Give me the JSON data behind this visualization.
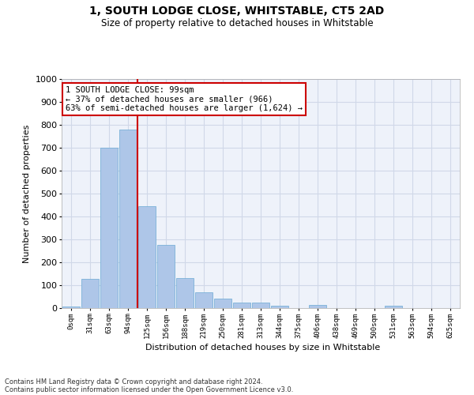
{
  "title_line1": "1, SOUTH LODGE CLOSE, WHITSTABLE, CT5 2AD",
  "title_line2": "Size of property relative to detached houses in Whitstable",
  "xlabel": "Distribution of detached houses by size in Whitstable",
  "ylabel": "Number of detached properties",
  "bar_color": "#aec6e8",
  "bar_edge_color": "#6aaad4",
  "categories": [
    "0sqm",
    "31sqm",
    "63sqm",
    "94sqm",
    "125sqm",
    "156sqm",
    "188sqm",
    "219sqm",
    "250sqm",
    "281sqm",
    "313sqm",
    "344sqm",
    "375sqm",
    "406sqm",
    "438sqm",
    "469sqm",
    "500sqm",
    "531sqm",
    "563sqm",
    "594sqm",
    "625sqm"
  ],
  "values": [
    8,
    127,
    700,
    780,
    445,
    275,
    132,
    70,
    40,
    23,
    23,
    12,
    0,
    13,
    0,
    0,
    0,
    10,
    0,
    0,
    0
  ],
  "ylim": [
    0,
    1000
  ],
  "yticks": [
    0,
    100,
    200,
    300,
    400,
    500,
    600,
    700,
    800,
    900,
    1000
  ],
  "vline_x_idx": 3,
  "annotation_text": "1 SOUTH LODGE CLOSE: 99sqm\n← 37% of detached houses are smaller (966)\n63% of semi-detached houses are larger (1,624) →",
  "annotation_box_color": "#ffffff",
  "annotation_box_edge_color": "#cc0000",
  "grid_color": "#d0d8e8",
  "vline_color": "#cc0000",
  "footer_line1": "Contains HM Land Registry data © Crown copyright and database right 2024.",
  "footer_line2": "Contains public sector information licensed under the Open Government Licence v3.0.",
  "bg_color": "#ffffff",
  "plot_bg_color": "#eef2fa"
}
